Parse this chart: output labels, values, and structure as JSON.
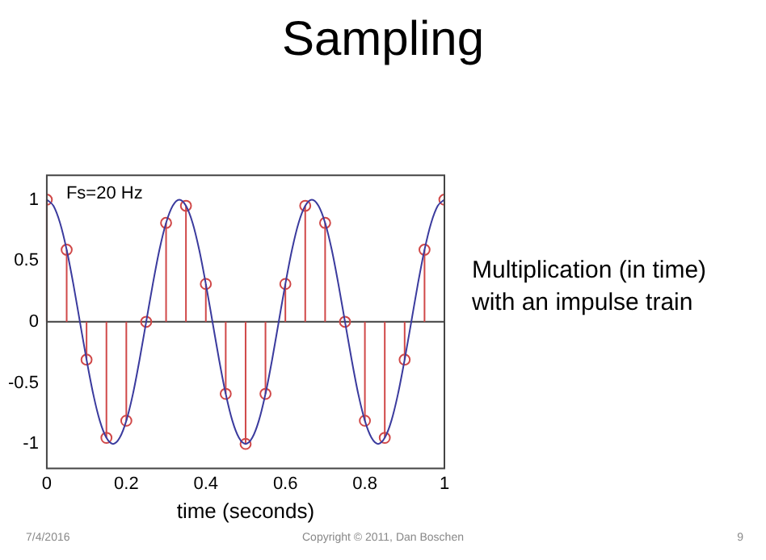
{
  "chart_data": {
    "type": "line",
    "title": "Sampling",
    "xlabel": "time (seconds)",
    "annotations": [
      "Fs=20 Hz",
      "Multiplication (in time) with an impulse train",
      "7/4/2016",
      "Copyright © 2011, Dan Boschen",
      "9"
    ],
    "xlim": [
      0,
      1
    ],
    "ylim": [
      -1.2,
      1.2
    ],
    "xticks": [
      0,
      0.2,
      0.4,
      0.6,
      0.8,
      1
    ],
    "yticks": [
      -1,
      -0.5,
      0,
      0.5,
      1
    ],
    "grid": false,
    "legend": false,
    "ref_lines": [
      {
        "axis": "y",
        "value": 0,
        "color": "#404040"
      }
    ],
    "series": [
      {
        "color": "#3b3b9e",
        "marker": "none",
        "x": [
          0,
          0.0167,
          0.0333,
          0.05,
          0.0667,
          0.0833,
          0.1,
          0.1167,
          0.1333,
          0.15,
          0.1667,
          0.1833,
          0.2,
          0.2167,
          0.2333,
          0.25,
          0.2667,
          0.2833,
          0.3,
          0.3167,
          0.3333,
          0.35,
          0.3667,
          0.3833,
          0.4,
          0.4167,
          0.4333,
          0.45,
          0.4667,
          0.4833,
          0.5,
          0.5167,
          0.5333,
          0.55,
          0.5667,
          0.5833,
          0.6,
          0.6167,
          0.6333,
          0.65,
          0.6667,
          0.6833,
          0.7,
          0.7167,
          0.7333,
          0.75,
          0.7667,
          0.7833,
          0.8,
          0.8167,
          0.8333,
          0.85,
          0.8667,
          0.8833,
          0.9,
          0.9167,
          0.9333,
          0.95,
          0.9667,
          0.9833,
          1
        ],
        "values": [
          1,
          0.95,
          0.81,
          0.59,
          0.31,
          0,
          -0.31,
          -0.59,
          -0.81,
          -0.95,
          -1,
          -0.95,
          -0.81,
          -0.59,
          -0.31,
          0,
          0.31,
          0.59,
          0.81,
          0.95,
          1,
          0.95,
          0.81,
          0.59,
          0.31,
          0,
          -0.31,
          -0.59,
          -0.81,
          -0.95,
          -1,
          -0.95,
          -0.81,
          -0.59,
          -0.31,
          0,
          0.31,
          0.59,
          0.81,
          0.95,
          1,
          0.95,
          0.81,
          0.59,
          0.31,
          0,
          -0.31,
          -0.59,
          -0.81,
          -0.95,
          -1,
          -0.95,
          -0.81,
          -0.59,
          -0.31,
          0,
          0.31,
          0.59,
          0.81,
          0.95,
          1
        ]
      },
      {
        "type": "lollipop",
        "color": "#d04848",
        "marker": "circle",
        "x": [
          0,
          0.05,
          0.1,
          0.15,
          0.2,
          0.25,
          0.3,
          0.35,
          0.4,
          0.45,
          0.5,
          0.55,
          0.6,
          0.65,
          0.7,
          0.75,
          0.8,
          0.85,
          0.9,
          0.95,
          1
        ],
        "values": [
          1,
          0.59,
          -0.31,
          -0.95,
          -0.81,
          0,
          0.81,
          0.95,
          0.31,
          -0.59,
          -1,
          -0.59,
          0.31,
          0.95,
          0.81,
          0,
          -0.81,
          -0.95,
          -0.31,
          0.59,
          1
        ]
      }
    ]
  }
}
